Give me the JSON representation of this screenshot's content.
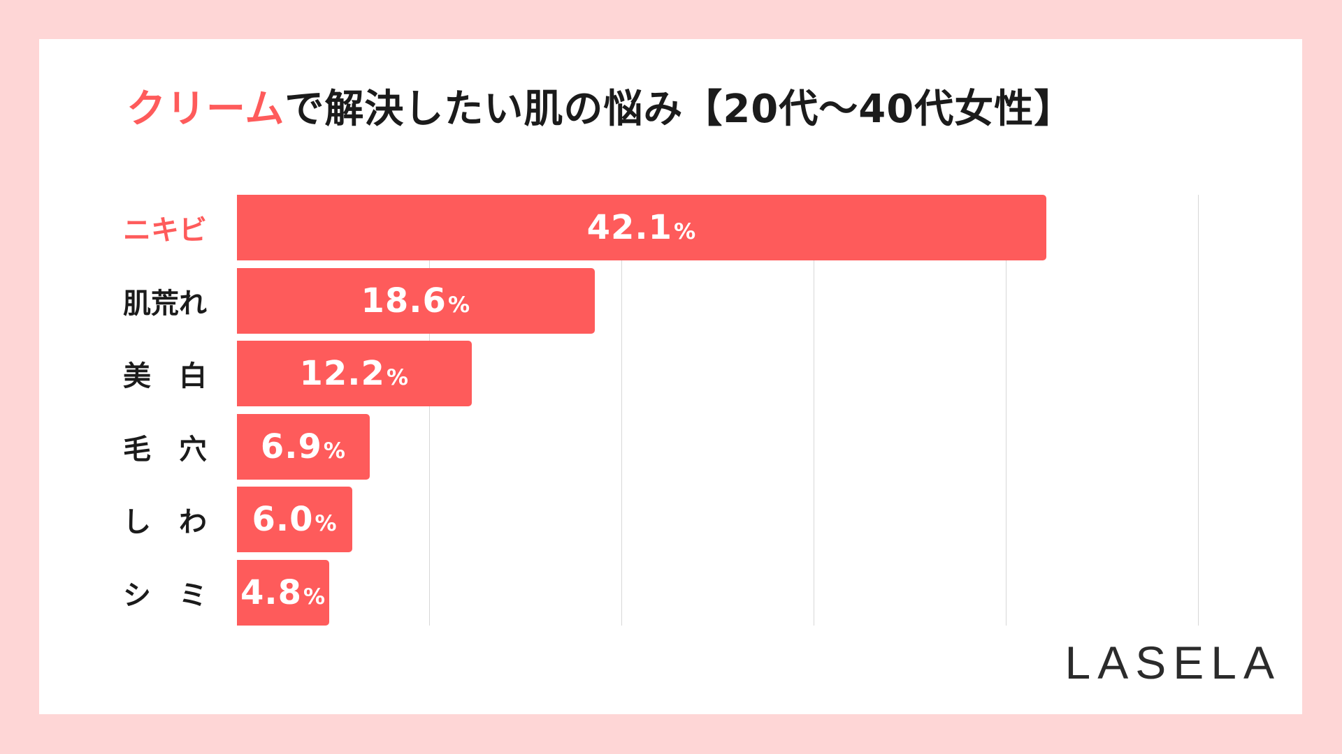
{
  "title": {
    "accent": "クリーム",
    "rest": "で解決したい肌の悩み【20代〜40代女性】"
  },
  "brand": "LASELA",
  "colors": {
    "background": "#fed6d6",
    "card": "#ffffff",
    "bar": "#fe5b5b",
    "highlight_label": "#fe5b5b",
    "text": "#1b1b1b",
    "grid": "#d7d7d7"
  },
  "chart_data": {
    "type": "bar",
    "orientation": "horizontal",
    "title": "クリームで解決したい肌の悩み【20代〜40代女性】",
    "categories": [
      "ニキビ",
      "肌荒れ",
      "美　白",
      "毛　穴",
      "し　わ",
      "シ　ミ"
    ],
    "values": [
      42.1,
      18.6,
      12.2,
      6.9,
      6.0,
      4.8
    ],
    "value_labels": [
      "42.1",
      "18.6",
      "12.2",
      "6.9",
      "6.0",
      "4.8"
    ],
    "unit": "%",
    "highlight_index": 0,
    "xlim": [
      0,
      50
    ],
    "grid_ticks": [
      10,
      20,
      30,
      40,
      50
    ],
    "grid": true,
    "xlabel": "",
    "ylabel": ""
  }
}
